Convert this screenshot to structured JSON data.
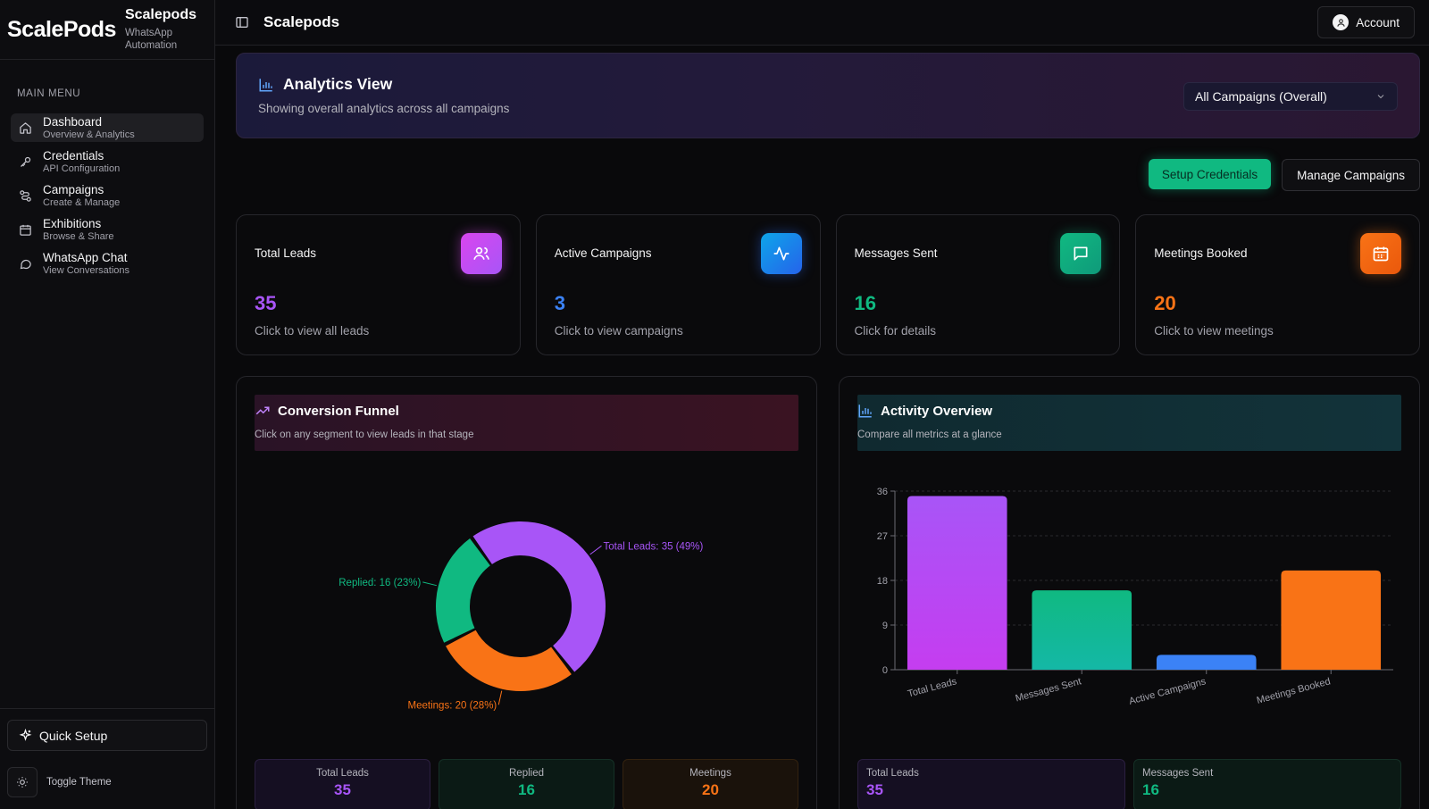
{
  "brand": {
    "logo": "ScalePods",
    "name": "Scalepods",
    "subtitle_line1": "WhatsApp",
    "subtitle_line2": "Automation"
  },
  "sidebar": {
    "menu_label": "MAIN MENU",
    "items": [
      {
        "title": "Dashboard",
        "subtitle": "Overview & Analytics",
        "icon": "home-icon",
        "active": true
      },
      {
        "title": "Credentials",
        "subtitle": "API Configuration",
        "icon": "key-icon",
        "active": false
      },
      {
        "title": "Campaigns",
        "subtitle": "Create & Manage",
        "icon": "route-icon",
        "active": false
      },
      {
        "title": "Exhibitions",
        "subtitle": "Browse & Share",
        "icon": "calendar-icon",
        "active": false
      },
      {
        "title": "WhatsApp Chat",
        "subtitle": "View Conversations",
        "icon": "chat-icon",
        "active": false
      }
    ],
    "quick_setup": "Quick Setup",
    "toggle_theme": "Toggle Theme"
  },
  "topbar": {
    "title": "Scalepods",
    "account": "Account"
  },
  "analytics": {
    "title": "Analytics View",
    "subtitle": "Showing overall analytics across all campaigns",
    "select_value": "All Campaigns (Overall)"
  },
  "actions": {
    "setup": "Setup Credentials",
    "manage": "Manage Campaigns"
  },
  "stats": [
    {
      "label": "Total Leads",
      "value": "35",
      "desc": "Click to view all leads",
      "color": "#a855f7",
      "icon": "users-icon"
    },
    {
      "label": "Active Campaigns",
      "value": "3",
      "desc": "Click to view campaigns",
      "color": "#3b82f6",
      "icon": "activity-icon"
    },
    {
      "label": "Messages Sent",
      "value": "16",
      "desc": "Click for details",
      "color": "#10b981",
      "icon": "message-icon"
    },
    {
      "label": "Meetings Booked",
      "value": "20",
      "desc": "Click to view meetings",
      "color": "#f97316",
      "icon": "calendar-icon"
    }
  ],
  "funnel": {
    "title": "Conversion Funnel",
    "subtitle": "Click on any segment to view leads in that stage",
    "mini": [
      {
        "label": "Total Leads",
        "value": "35",
        "color": "#a855f7"
      },
      {
        "label": "Replied",
        "value": "16",
        "color": "#10b981"
      },
      {
        "label": "Meetings",
        "value": "20",
        "color": "#f97316"
      }
    ]
  },
  "activity": {
    "title": "Activity Overview",
    "subtitle": "Compare all metrics at a glance",
    "mini": [
      {
        "label": "Total Leads",
        "value": "35",
        "color": "#a855f7"
      },
      {
        "label": "Messages Sent",
        "value": "16",
        "color": "#10b981"
      }
    ]
  },
  "chart_data": [
    {
      "type": "pie",
      "title": "Conversion Funnel",
      "donut": true,
      "categories": [
        "Total Leads",
        "Meetings",
        "Replied"
      ],
      "values": [
        35,
        20,
        16
      ],
      "labels": [
        "Total Leads: 35 (49%)",
        "Meetings: 20 (28%)",
        "Replied: 16 (23%)"
      ],
      "colors": [
        "#a855f7",
        "#f97316",
        "#10b981"
      ]
    },
    {
      "type": "bar",
      "title": "Activity Overview",
      "categories": [
        "Total Leads",
        "Messages Sent",
        "Active Campaigns",
        "Meetings Booked"
      ],
      "values": [
        35,
        16,
        3,
        20
      ],
      "colors": [
        "#c53df0",
        "#14b8a6",
        "#3b82f6",
        "#f97316"
      ],
      "ylim": [
        0,
        36
      ],
      "yticks": [
        "0",
        "9",
        "18",
        "27",
        "36"
      ],
      "grid": true
    }
  ]
}
